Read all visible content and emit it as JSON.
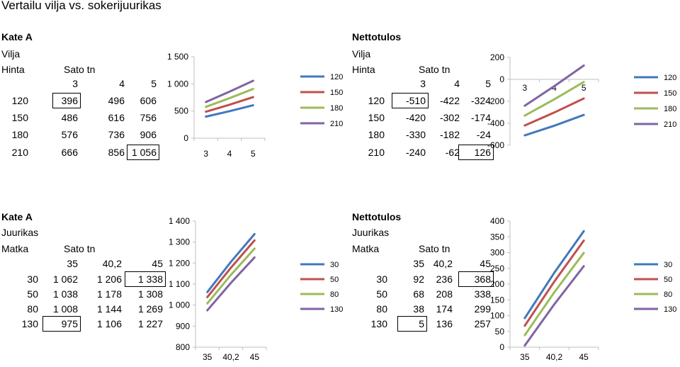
{
  "page_title": "Vertailu vilja vs. sokerijuurikas",
  "colors": {
    "s1": "#4178BE",
    "s2": "#C0504D",
    "s3": "#9BBB59",
    "s4": "#8064A2",
    "axis": "#BFBFBF",
    "grid": "#D9D9D9"
  },
  "sections": [
    {
      "header": "Kate A",
      "crop": "Vilja",
      "row_label": "Hinta",
      "col_label": "Sato tn",
      "col_headers": [
        "3",
        "4",
        "5"
      ],
      "rows": [
        {
          "label": "120",
          "cells": [
            "396",
            "496",
            "606"
          ]
        },
        {
          "label": "150",
          "cells": [
            "486",
            "616",
            "756"
          ]
        },
        {
          "label": "180",
          "cells": [
            "576",
            "736",
            "906"
          ]
        },
        {
          "label": "210",
          "cells": [
            "666",
            "856",
            "1 056"
          ]
        }
      ]
    },
    {
      "header": "Nettotulos",
      "crop": "Vilja",
      "row_label": "Hinta",
      "col_label": "Sato tn",
      "col_headers": [
        "3",
        "4",
        "5"
      ],
      "rows": [
        {
          "label": "120",
          "cells": [
            "-510",
            "-422",
            "-324"
          ]
        },
        {
          "label": "150",
          "cells": [
            "-420",
            "-302",
            "-174"
          ]
        },
        {
          "label": "180",
          "cells": [
            "-330",
            "-182",
            "-24"
          ]
        },
        {
          "label": "210",
          "cells": [
            "-240",
            "-62",
            "126"
          ]
        }
      ]
    },
    {
      "header": "Kate A",
      "crop": "Juurikas",
      "row_label": "Matka",
      "col_label": "Sato tn",
      "col_headers": [
        "35",
        "40,2",
        "45"
      ],
      "rows": [
        {
          "label": "30",
          "cells": [
            "1 062",
            "1 206",
            "1 338"
          ]
        },
        {
          "label": "50",
          "cells": [
            "1 038",
            "1 178",
            "1 308"
          ]
        },
        {
          "label": "80",
          "cells": [
            "1 008",
            "1 144",
            "1 269"
          ]
        },
        {
          "label": "130",
          "cells": [
            "975",
            "1 106",
            "1 227"
          ]
        }
      ]
    },
    {
      "header": "Nettotulos",
      "crop": "Juurikas",
      "row_label": "Matka",
      "col_label": "Sato tn",
      "col_headers": [
        "35",
        "40,2",
        "45"
      ],
      "rows": [
        {
          "label": "30",
          "cells": [
            "92",
            "236",
            "368"
          ]
        },
        {
          "label": "50",
          "cells": [
            "68",
            "208",
            "338"
          ]
        },
        {
          "label": "80",
          "cells": [
            "38",
            "174",
            "299"
          ]
        },
        {
          "label": "130",
          "cells": [
            "5",
            "136",
            "257"
          ]
        }
      ]
    }
  ],
  "chart_data": [
    {
      "type": "line",
      "categories": [
        "3",
        "4",
        "5"
      ],
      "ylim": [
        0,
        1500
      ],
      "yticks": [
        "0",
        "500",
        "1 000",
        "1 500"
      ],
      "legend": "right",
      "series": [
        {
          "name": "120",
          "values": [
            396,
            496,
            606
          ]
        },
        {
          "name": "150",
          "values": [
            486,
            616,
            756
          ]
        },
        {
          "name": "180",
          "values": [
            576,
            736,
            906
          ]
        },
        {
          "name": "210",
          "values": [
            666,
            856,
            1056
          ]
        }
      ]
    },
    {
      "type": "line",
      "categories": [
        "3",
        "4",
        "5"
      ],
      "ylim": [
        -600,
        200
      ],
      "yticks": [
        "-600",
        "-400",
        "-200",
        "0",
        "200"
      ],
      "legend": "right",
      "series": [
        {
          "name": "120",
          "values": [
            -510,
            -422,
            -324
          ]
        },
        {
          "name": "150",
          "values": [
            -420,
            -302,
            -174
          ]
        },
        {
          "name": "180",
          "values": [
            -330,
            -182,
            -24
          ]
        },
        {
          "name": "210",
          "values": [
            -240,
            -62,
            126
          ]
        }
      ]
    },
    {
      "type": "line",
      "categories": [
        "35",
        "40,2",
        "45"
      ],
      "ylim": [
        800,
        1400
      ],
      "yticks": [
        "800",
        "900",
        "1 000",
        "1 100",
        "1 200",
        "1 300",
        "1 400"
      ],
      "legend": "right",
      "series": [
        {
          "name": "30",
          "values": [
            1062,
            1206,
            1338
          ]
        },
        {
          "name": "50",
          "values": [
            1038,
            1178,
            1308
          ]
        },
        {
          "name": "80",
          "values": [
            1008,
            1144,
            1269
          ]
        },
        {
          "name": "130",
          "values": [
            975,
            1106,
            1227
          ]
        }
      ]
    },
    {
      "type": "line",
      "categories": [
        "35",
        "40,2",
        "45"
      ],
      "ylim": [
        0,
        400
      ],
      "yticks": [
        "0",
        "50",
        "100",
        "150",
        "200",
        "250",
        "300",
        "350",
        "400"
      ],
      "legend": "right",
      "series": [
        {
          "name": "30",
          "values": [
            92,
            236,
            368
          ]
        },
        {
          "name": "50",
          "values": [
            68,
            208,
            338
          ]
        },
        {
          "name": "80",
          "values": [
            38,
            174,
            299
          ]
        },
        {
          "name": "130",
          "values": [
            5,
            136,
            257
          ]
        }
      ]
    }
  ]
}
